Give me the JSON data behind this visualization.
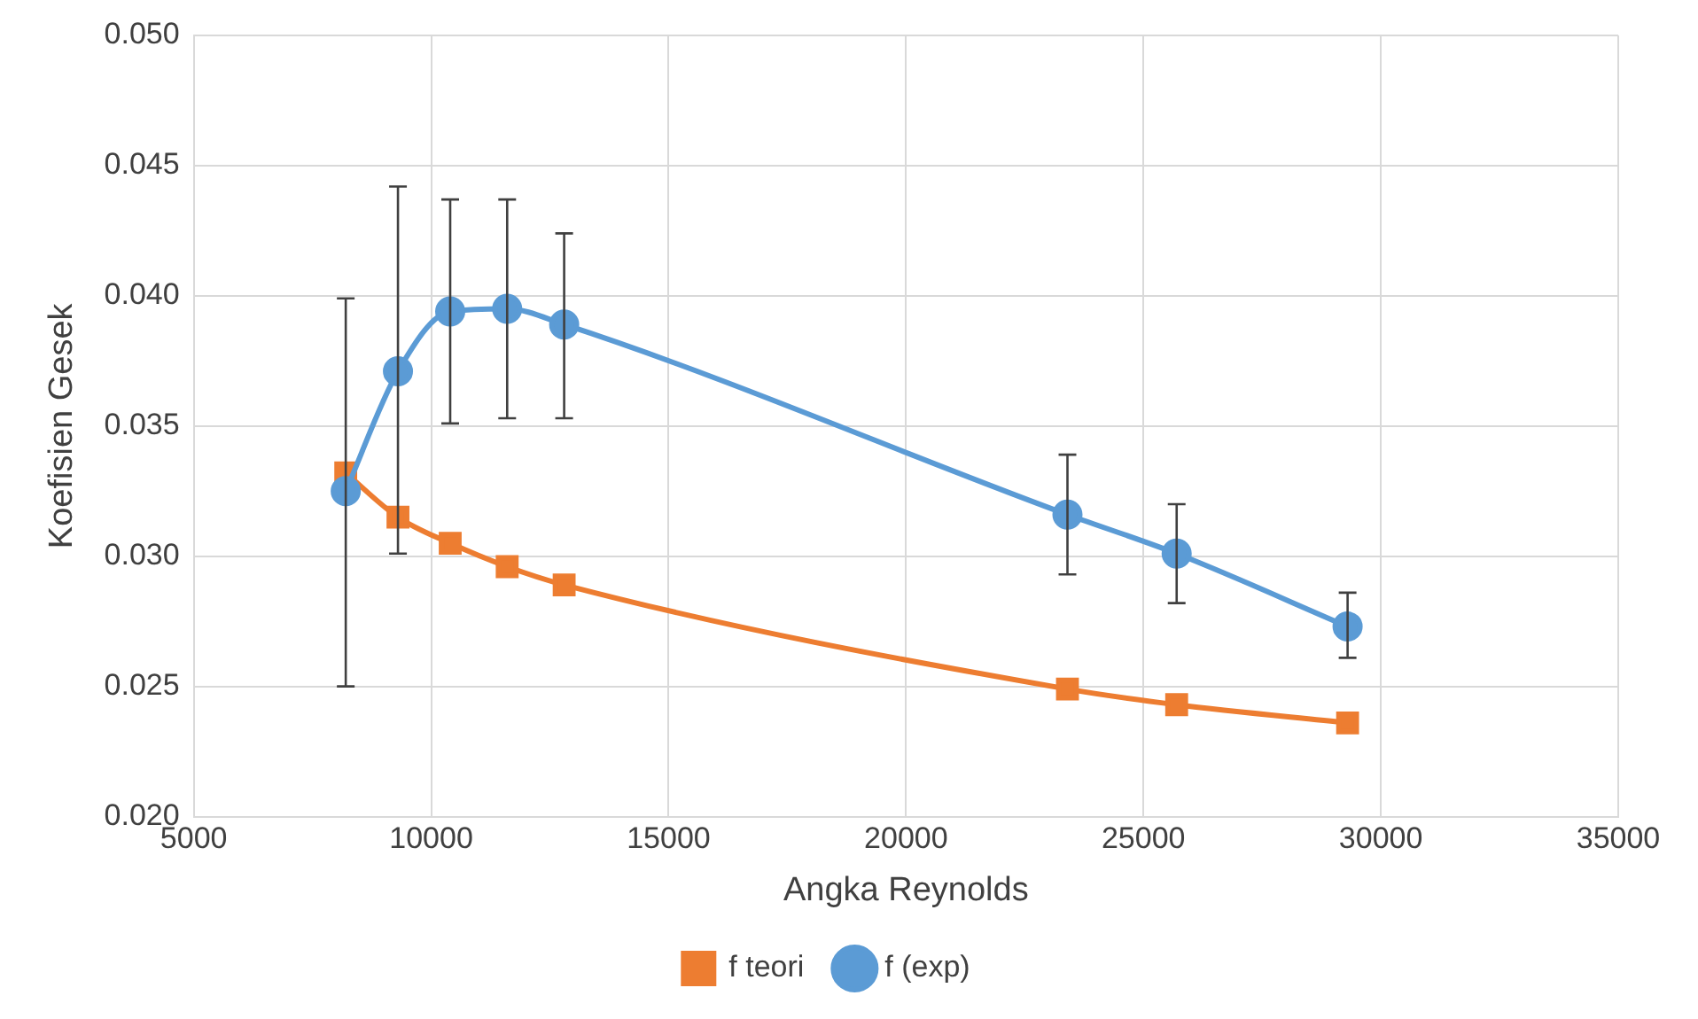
{
  "chart_data": {
    "type": "line",
    "xlabel": "Angka Reynolds",
    "ylabel": "Koefisien Gesek",
    "xlim": [
      5000,
      35000
    ],
    "xticks": [
      5000,
      10000,
      15000,
      20000,
      25000,
      30000,
      35000
    ],
    "ylim": [
      0.02,
      0.05
    ],
    "yticks": [
      {
        "value": 0.02,
        "label": "0.020"
      },
      {
        "value": 0.025,
        "label": "0.025"
      },
      {
        "value": 0.03,
        "label": "0.030"
      },
      {
        "value": 0.035,
        "label": "0.035"
      },
      {
        "value": 0.04,
        "label": "0.040"
      },
      {
        "value": 0.045,
        "label": "0.045"
      },
      {
        "value": 0.05,
        "label": "0.050"
      }
    ],
    "grid": true,
    "legend": "bottom",
    "line_style": "solid",
    "x": [
      8200,
      9300,
      10400,
      11600,
      12800,
      23400,
      25700,
      29300
    ],
    "series": [
      {
        "name": "f teori",
        "color": "#ed7d31",
        "marker": "square",
        "values": [
          0.0332,
          0.0315,
          0.0305,
          0.0296,
          0.0289,
          0.0249,
          0.0243,
          0.0236
        ]
      },
      {
        "name": "f (exp)",
        "color": "#5b9bd5",
        "marker": "circle",
        "values": [
          0.0325,
          0.0371,
          0.0394,
          0.0395,
          0.0389,
          0.0316,
          0.0301,
          0.0273
        ],
        "errors": [
          [
            0.025,
            0.0399
          ],
          [
            0.0301,
            0.0442
          ],
          [
            0.0351,
            0.0437
          ],
          [
            0.0353,
            0.0437
          ],
          [
            0.0353,
            0.0424
          ],
          [
            0.0293,
            0.0339
          ],
          [
            0.0282,
            0.032
          ],
          [
            0.0261,
            0.0286
          ]
        ]
      }
    ]
  }
}
